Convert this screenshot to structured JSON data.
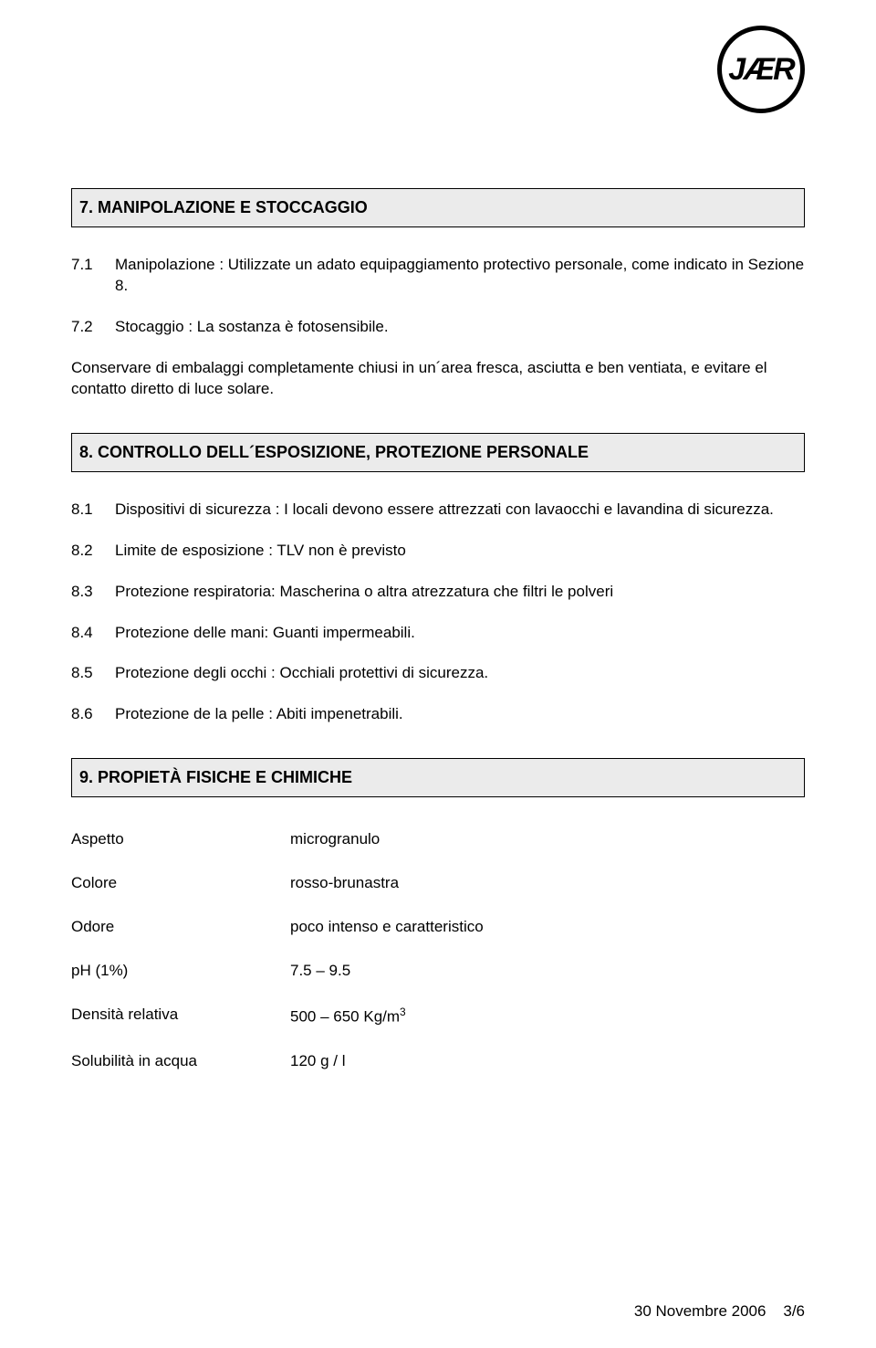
{
  "logo": {
    "text": "JÆR"
  },
  "section7": {
    "title": "7. MANIPOLAZIONE E STOCCAGGIO",
    "items": [
      {
        "num": "7.1",
        "text": "Manipolazione : Utilizzate un adato equipaggiamento protectivo personale, come indicato in Sezione 8."
      },
      {
        "num": "7.2",
        "text": "Stocaggio :  La sostanza è fotosensibile."
      }
    ],
    "para": "Conservare di embalaggi completamente chiusi in un´area fresca, asciutta e ben ventiata,  e evitare el contatto diretto di luce solare."
  },
  "section8": {
    "title": "8. CONTROLLO DELL´ESPOSIZIONE, PROTEZIONE PERSONALE",
    "items": [
      {
        "num": "8.1",
        "text": "Dispositivi di sicurezza : I locali devono essere attrezzati con lavaocchi e lavandina di sicurezza."
      },
      {
        "num": "8.2",
        "text": "Limite de esposizione : TLV non è previsto"
      },
      {
        "num": "8.3",
        "text": "Protezione respiratoria: Mascherina o altra atrezzatura che filtri le polveri"
      },
      {
        "num": "8.4",
        "text": "Protezione delle mani: Guanti impermeabili."
      },
      {
        "num": "8.5",
        "text": "Protezione degli occhi : Occhiali protettivi di sicurezza."
      },
      {
        "num": "8.6",
        "text": "Protezione de la pelle : Abiti impenetrabili."
      }
    ]
  },
  "section9": {
    "title": "9. PROPIETÀ  FISICHE  E CHIMICHE",
    "properties": [
      {
        "label": "Aspetto",
        "value": "microgranulo"
      },
      {
        "label": "Colore",
        "value": "rosso-brunastra"
      },
      {
        "label": "Odore",
        "value": "poco intenso e caratteristico"
      },
      {
        "label": "pH (1%)",
        "value": "7.5 – 9.5"
      },
      {
        "label": "Densità relativa",
        "value": "500 – 650 Kg/m",
        "sup": "3"
      },
      {
        "label": "Solubilità in acqua",
        "value": "120 g / l"
      }
    ]
  },
  "footer": {
    "date": "30 Novembre 2006",
    "page": "3/6"
  }
}
